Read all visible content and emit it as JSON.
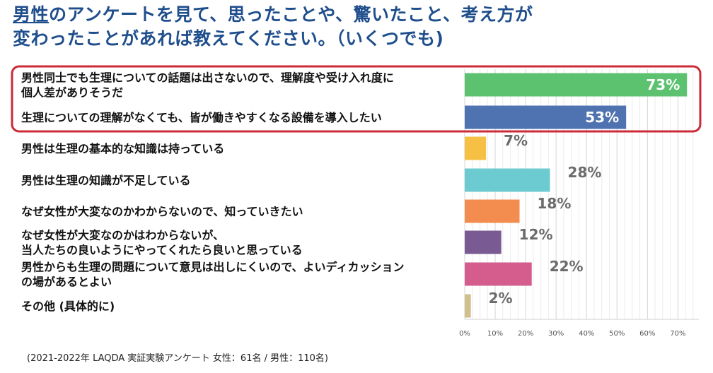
{
  "title_emph": "男性",
  "title_rest_line1": "のアンケートを見て、思ったことや、驚いたこと、考え方が",
  "title_line2": "変わったことがあれば教えてください。（いくつでも)",
  "chart_data": {
    "type": "bar",
    "orientation": "horizontal",
    "categories": [
      [
        "男性同士でも生理についての話題は出さないので、理解度や受け入れ度に",
        "個人差がありそうだ"
      ],
      [
        "生理についての理解がなくても、皆が働きやすくなる設備を導入したい"
      ],
      [
        "男性は生理の基本的な知識は持っている"
      ],
      [
        "男性は生理の知識が不足している"
      ],
      [
        "なぜ女性が大変なのかわからないので、知っていきたい"
      ],
      [
        "なぜ女性が大変なのかはわからないが、",
        "当人たちの良いようにやってくれたら良いと思っている"
      ],
      [
        "男性からも生理の問題について意見は出しにくいので、よいディカッション",
        "の場があるとよい"
      ],
      [
        "その他 (具体的に)"
      ]
    ],
    "values": [
      73,
      53,
      7,
      28,
      18,
      12,
      22,
      2
    ],
    "value_labels": [
      "73%",
      "53%",
      "7%",
      "28%",
      "18%",
      "12%",
      "22%",
      "2%"
    ],
    "colors": [
      "#5cc26f",
      "#4f72b0",
      "#f6c045",
      "#6ccbd0",
      "#f28c4f",
      "#7a5a93",
      "#d45d8e",
      "#cfc08c"
    ],
    "xlim": [
      0,
      75
    ],
    "x_ticks": [
      "0%",
      "10%",
      "20%",
      "30%",
      "40%",
      "50%",
      "60%",
      "70%"
    ],
    "grid": true,
    "highlight_color": "#cc2a36",
    "highlighted_count": 2
  },
  "footnote": "(2021-2022年 LAQDA 実証実験アンケート 女性：61名 / 男性：110名)"
}
